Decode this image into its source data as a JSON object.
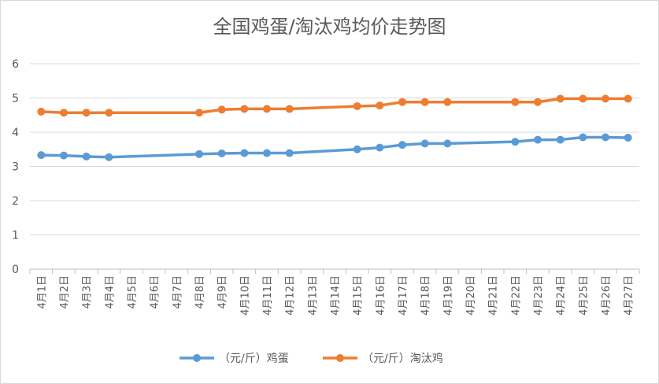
{
  "chart_data": {
    "type": "line",
    "title": "全国鸡蛋/淘汰鸡均价走势图",
    "xlabel": "",
    "ylabel": "",
    "ylim": [
      0,
      6
    ],
    "yticks": [
      0,
      1,
      2,
      3,
      4,
      5,
      6
    ],
    "grid": true,
    "legend_position": "bottom",
    "categories": [
      "4月1日",
      "4月2日",
      "4月3日",
      "4月4日",
      "4月5日",
      "4月6日",
      "4月7日",
      "4月8日",
      "4月9日",
      "4月10日",
      "4月11日",
      "4月12日",
      "4月13日",
      "4月14日",
      "4月15日",
      "4月16日",
      "4月17日",
      "4月18日",
      "4月19日",
      "4月20日",
      "4月21日",
      "4月22日",
      "4月23日",
      "4月24日",
      "4月25日",
      "4月26日",
      "4月27日"
    ],
    "series": [
      {
        "name": "（元/斤）鸡蛋",
        "color": "#5b9bd5",
        "values": [
          3.33,
          3.32,
          3.29,
          3.27,
          null,
          null,
          null,
          3.36,
          3.38,
          3.39,
          3.39,
          3.39,
          null,
          null,
          3.5,
          3.55,
          3.63,
          3.67,
          3.67,
          null,
          null,
          3.72,
          3.78,
          3.78,
          3.85,
          3.85,
          3.84
        ]
      },
      {
        "name": "（元/斤）淘汰鸡",
        "color": "#ed7d31",
        "values": [
          4.6,
          4.57,
          4.57,
          4.57,
          null,
          null,
          null,
          4.57,
          4.66,
          4.68,
          4.68,
          4.68,
          null,
          null,
          4.76,
          4.78,
          4.88,
          4.88,
          4.88,
          null,
          null,
          4.88,
          4.88,
          4.98,
          4.98,
          4.98,
          4.98
        ]
      }
    ]
  }
}
